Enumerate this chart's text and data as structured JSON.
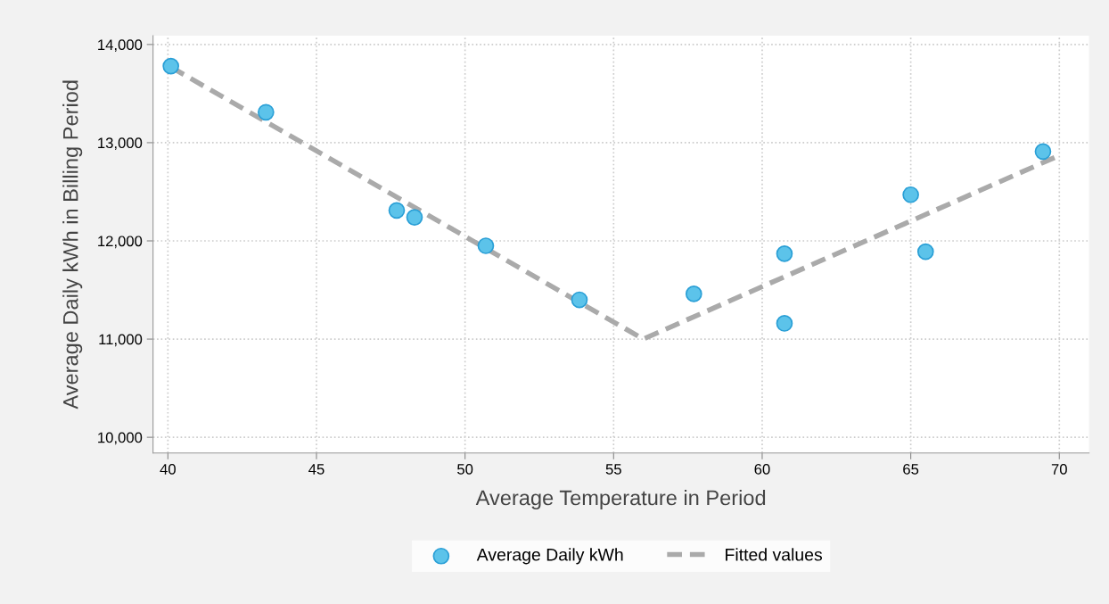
{
  "chart_data": {
    "type": "scatter",
    "xlabel": "Average Temperature in Period",
    "ylabel": "Average Daily kWh in Billing Period",
    "xlim": [
      39.5,
      71
    ],
    "xticks": [
      40,
      45,
      50,
      55,
      60,
      65,
      70
    ],
    "ylim": [
      9840,
      14090
    ],
    "yticks": [
      {
        "value": 10000,
        "label": "10,000"
      },
      {
        "value": 11000,
        "label": "11,000"
      },
      {
        "value": 12000,
        "label": "12,000"
      },
      {
        "value": 13000,
        "label": "13,000"
      },
      {
        "value": 14000,
        "label": "14,000"
      }
    ],
    "grid": true,
    "legend": "bottom",
    "series": [
      {
        "name": "Average Daily kWh",
        "marker": "circle",
        "color": "#5cc3ea",
        "x": [
          40.1,
          43.3,
          47.7,
          48.3,
          50.7,
          53.85,
          57.7,
          60.75,
          60.75,
          65.0,
          65.5,
          69.45
        ],
        "values": [
          13780,
          13310,
          12310,
          12240,
          11950,
          11400,
          11460,
          11870,
          11160,
          12470,
          11890,
          12910
        ]
      },
      {
        "name": "Fitted values",
        "type": "line",
        "line_style": "dashed",
        "color": "#aaaaaa",
        "x": [
          40.1,
          56.0,
          70.0
        ],
        "values": [
          13770,
          11000,
          12870
        ]
      }
    ]
  }
}
